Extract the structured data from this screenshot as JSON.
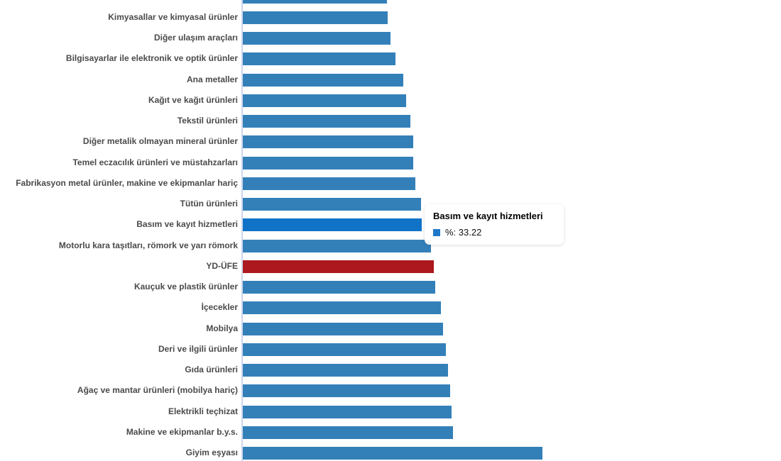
{
  "tooltip": {
    "title": "Basım ve kayıt hizmetleri",
    "value_label": "%: 33.22"
  },
  "colors": {
    "bar": "#3380b9",
    "bar_hover": "#1173c8",
    "highlight_bar": "#ab181d",
    "axis_line": "#ccd6eb",
    "label_text": "#4a4a4a",
    "tooltip_marker": "#1f78c8"
  },
  "chart_data": {
    "type": "bar",
    "orientation": "horizontal",
    "title": "",
    "xlabel": "",
    "ylabel": "",
    "unit": "%",
    "xlim": [
      0,
      100
    ],
    "grid": false,
    "legend": false,
    "categories": [
      "",
      "Kimyasallar ve kimyasal ürünler",
      "Diğer ulaşım araçları",
      "Bilgisayarlar ile elektronik ve optik ürünler",
      "Ana metaller",
      "Kağıt ve kağıt ürünleri",
      "Tekstil ürünleri",
      "Diğer metalik olmayan mineral ürünler",
      "Temel eczacılık ürünleri ve müstahzarları",
      "Fabrikasyon metal ürünler, makine ve ekipmanlar hariç",
      "Tütün ürünleri",
      "Basım ve kayıt hizmetleri",
      "Motorlu kara taşıtları, römork ve yarı römork",
      "YD-ÜFE",
      "Kauçuk ve plastik ürünler",
      "İçecekler",
      "Mobilya",
      "Deri ve ilgili ürünler",
      "Gıda ürünleri",
      "Ağaç ve mantar ürünleri (mobilya hariç)",
      "Elektrikli teçhizat",
      "Makine ve ekipmanlar b.y.s.",
      "Giyim eşyası"
    ],
    "values": [
      26.76,
      26.9,
      27.4,
      28.3,
      29.75,
      30.3,
      31.1,
      31.6,
      31.65,
      32.0,
      33.05,
      33.22,
      34.9,
      35.45,
      35.7,
      36.8,
      37.2,
      37.7,
      38.1,
      38.5,
      38.75,
      39.0,
      55.6
    ],
    "highlighted_category": "YD-ÜFE",
    "hovered_category": "Basım ve kayıt hizmetleri",
    "hovered_value": 33.22
  }
}
